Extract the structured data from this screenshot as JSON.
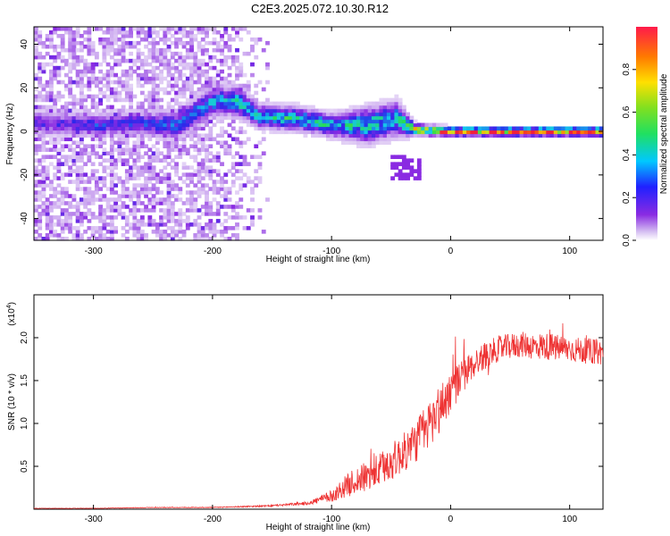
{
  "title": "C2E3.2025.072.10.30.R12",
  "colors": {
    "background": "#ffffff",
    "axis": "#000000",
    "snr_line": "#ee3333",
    "spectro_low": "#e8dcf5",
    "spectro_purple": "#7a1ee6",
    "spectro_blue": "#2a2ae0",
    "spectro_cyan": "#19c7e6",
    "spectro_green": "#3cd63c",
    "spectro_red": "#e8283a"
  },
  "chart_data": [
    {
      "type": "heatmap",
      "name": "spectrogram",
      "xlabel": "Height of straight line (km)",
      "ylabel": "Frequency (Hz)",
      "xlim": [
        -350,
        128
      ],
      "ylim": [
        -50,
        48
      ],
      "xticks": [
        -300,
        -200,
        -100,
        0,
        100
      ],
      "yticks": [
        -40,
        -20,
        0,
        20,
        40
      ],
      "colorbar": {
        "label": "Normalized spectral amplitude",
        "range": [
          0,
          1
        ],
        "ticks": [
          "0.0",
          "0.2",
          "0.4",
          "0.6",
          "0.8"
        ],
        "tick_values": [
          0,
          0.2,
          0.4,
          0.6,
          0.8
        ]
      },
      "ridge": [
        {
          "x": -340,
          "y": 4,
          "amp": 0.25,
          "width": 4
        },
        {
          "x": -300,
          "y": 3,
          "amp": 0.3,
          "width": 4
        },
        {
          "x": -260,
          "y": 4,
          "amp": 0.32,
          "width": 4
        },
        {
          "x": -230,
          "y": 3,
          "amp": 0.35,
          "width": 5
        },
        {
          "x": -200,
          "y": 14,
          "amp": 0.4,
          "width": 5
        },
        {
          "x": -180,
          "y": 14,
          "amp": 0.45,
          "width": 5
        },
        {
          "x": -160,
          "y": 7,
          "amp": 0.45,
          "width": 4
        },
        {
          "x": -130,
          "y": 6,
          "amp": 0.5,
          "width": 4
        },
        {
          "x": -100,
          "y": 3,
          "amp": 0.45,
          "width": 4
        },
        {
          "x": -70,
          "y": 3,
          "amp": 0.5,
          "width": 6
        },
        {
          "x": -45,
          "y": 6,
          "amp": 0.45,
          "width": 6
        },
        {
          "x": -30,
          "y": 1,
          "amp": 0.7,
          "width": 2
        },
        {
          "x": 0,
          "y": 0,
          "amp": 0.95,
          "width": 1.5
        },
        {
          "x": 50,
          "y": 0,
          "amp": 0.95,
          "width": 1.5
        },
        {
          "x": 128,
          "y": 0,
          "amp": 0.95,
          "width": 1.5
        }
      ],
      "noise_region_upper_x": -150
    },
    {
      "type": "line",
      "name": "snr",
      "xlabel": "Height of straight line (km)",
      "ylabel": "SNR (10 * v/v)",
      "yscale_label": "(x10",
      "yscale_exp": "4",
      "xlim": [
        -350,
        128
      ],
      "ylim": [
        0,
        2.5
      ],
      "xticks": [
        -300,
        -200,
        -100,
        0,
        100
      ],
      "yticks": [
        0.5,
        1.0,
        1.5,
        2.0
      ],
      "ytick_labels": [
        "0.5",
        "1.0",
        "1.5",
        "2.0"
      ],
      "series": [
        {
          "x": [
            -350,
            -300,
            -250,
            -200,
            -150,
            -120,
            -100,
            -90,
            -80,
            -70,
            -60,
            -50,
            -40,
            -30,
            -20,
            -10,
            0,
            10,
            20,
            30,
            40,
            50,
            60,
            70,
            80,
            90,
            100,
            110,
            120,
            128
          ],
          "y": [
            0.01,
            0.01,
            0.02,
            0.02,
            0.04,
            0.07,
            0.15,
            0.25,
            0.33,
            0.38,
            0.45,
            0.55,
            0.65,
            0.78,
            0.95,
            1.15,
            1.38,
            1.55,
            1.7,
            1.8,
            1.87,
            1.9,
            1.92,
            1.9,
            1.9,
            1.88,
            1.87,
            1.85,
            1.84,
            1.83
          ],
          "noise": [
            0.002,
            0.003,
            0.004,
            0.005,
            0.01,
            0.02,
            0.07,
            0.12,
            0.16,
            0.18,
            0.2,
            0.22,
            0.23,
            0.25,
            0.28,
            0.3,
            0.25,
            0.2,
            0.17,
            0.16,
            0.15,
            0.15,
            0.15,
            0.16,
            0.16,
            0.16,
            0.15,
            0.15,
            0.15,
            0.15
          ]
        }
      ]
    }
  ]
}
